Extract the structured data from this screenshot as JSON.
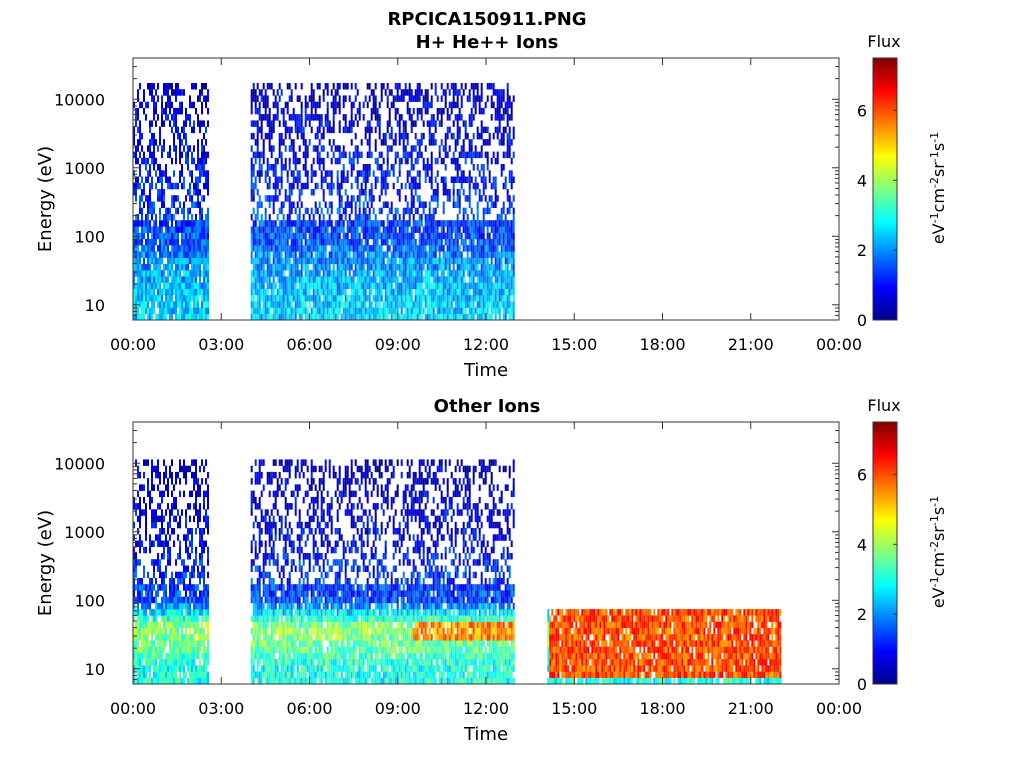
{
  "figure": {
    "title": "RPCICA150911.PNG"
  },
  "colorbar_colors": [
    "#00008f",
    "#0000ff",
    "#007fff",
    "#00ffff",
    "#7fff7f",
    "#ffff00",
    "#ff7f00",
    "#ff0000",
    "#7f0000"
  ],
  "chart_data": [
    {
      "type": "heatmap",
      "title": "H+ He++ Ions",
      "xlabel": "Time",
      "ylabel": "Energy (eV)",
      "x_ticks": [
        "00:00",
        "03:00",
        "06:00",
        "09:00",
        "12:00",
        "15:00",
        "18:00",
        "21:00",
        "00:00"
      ],
      "xlim_hours": [
        0,
        24
      ],
      "y_scale": "log",
      "y_ticks": [
        "10",
        "100",
        "1000",
        "10000"
      ],
      "ylim": [
        6,
        40000
      ],
      "colorbar": {
        "label": "Flux",
        "units": "eV-1cm-2sr-1s-1",
        "ticks": [
          "0",
          "2",
          "4",
          "6"
        ],
        "range": [
          0,
          7.5
        ]
      },
      "data_segments": [
        {
          "start": "00:00",
          "end": "02:35",
          "energy_max": 16000
        },
        {
          "start": "04:00",
          "end": "12:55",
          "energy_max": 16000
        }
      ],
      "typical_flux_by_energy": [
        {
          "energy": 10,
          "flux": 2.5
        },
        {
          "energy": 30,
          "flux": 2.2
        },
        {
          "energy": 100,
          "flux": 1.5
        },
        {
          "energy": 1000,
          "flux": 1.0
        },
        {
          "energy": 10000,
          "flux": 0.6
        }
      ]
    },
    {
      "type": "heatmap",
      "title": "Other Ions",
      "xlabel": "Time",
      "ylabel": "Energy (eV)",
      "x_ticks": [
        "00:00",
        "03:00",
        "06:00",
        "09:00",
        "12:00",
        "15:00",
        "18:00",
        "21:00",
        "00:00"
      ],
      "xlim_hours": [
        0,
        24
      ],
      "y_scale": "log",
      "y_ticks": [
        "10",
        "100",
        "1000",
        "10000"
      ],
      "ylim": [
        6,
        40000
      ],
      "colorbar": {
        "label": "Flux",
        "units": "eV-1cm-2sr-1s-1",
        "ticks": [
          "0",
          "2",
          "4",
          "6"
        ],
        "range": [
          0,
          7.5
        ]
      },
      "data_segments": [
        {
          "start": "00:00",
          "end": "02:35",
          "energy_max": 11000
        },
        {
          "start": "04:00",
          "end": "12:55",
          "energy_max": 11000
        },
        {
          "start": "14:05",
          "end": "22:00",
          "energy_max": 80
        }
      ],
      "typical_flux_by_energy": [
        {
          "energy": 10,
          "flux": 3.0
        },
        {
          "energy": 20,
          "flux": 3.5
        },
        {
          "energy": 40,
          "flux": 4.0
        },
        {
          "energy": 100,
          "flux": 1.5
        },
        {
          "energy": 1000,
          "flux": 0.8
        },
        {
          "energy": 10000,
          "flux": 0.5
        }
      ],
      "high_flux_regions": [
        {
          "start": "09:30",
          "end": "12:55",
          "energy_min": 25,
          "energy_max": 50,
          "flux": 5.5
        },
        {
          "start": "14:05",
          "end": "22:00",
          "energy_min": 8,
          "energy_max": 70,
          "flux": 6.0
        }
      ]
    }
  ]
}
